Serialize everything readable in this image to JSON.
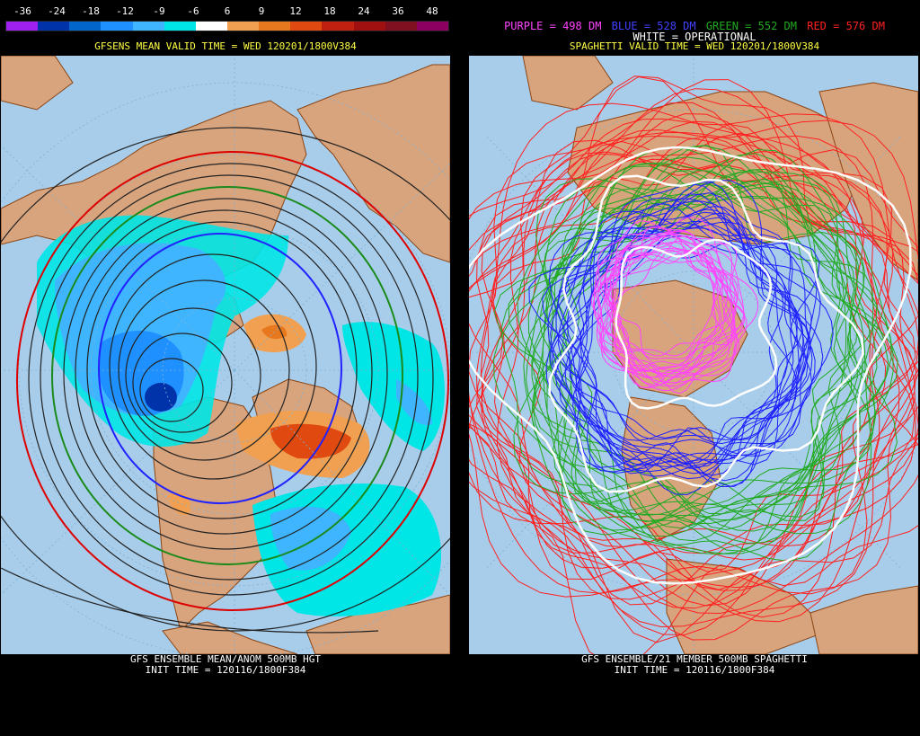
{
  "left": {
    "legend": {
      "labels": [
        "-36",
        "-24",
        "-18",
        "-12",
        "-9",
        "-6",
        "6",
        "9",
        "12",
        "18",
        "24",
        "36",
        "48"
      ],
      "colors": [
        "#a020f0",
        "#0033aa",
        "#0066cc",
        "#1e90ff",
        "#3fb5ff",
        "#00e5e5",
        "#ffffff",
        "#f0a050",
        "#e8781e",
        "#e04a10",
        "#c02010",
        "#a01010",
        "#801020",
        "#8b0060"
      ]
    },
    "title": "GFSENS MEAN VALID TIME = WED 120201/1800V384",
    "caption_line1": "GFS ENSEMBLE MEAN/ANOM 500MB HGT",
    "caption_line2": "INIT TIME = 120116/1800F384"
  },
  "right": {
    "header_items": [
      {
        "text": "PURPLE = 498 DM",
        "color": "#ff44ff"
      },
      {
        "text": "BLUE = 528 DM",
        "color": "#4040ff"
      },
      {
        "text": "GREEN = 552 DM",
        "color": "#22aa22"
      },
      {
        "text": "RED = 576 DM",
        "color": "#ff2020"
      }
    ],
    "subheader": "WHITE = OPERATIONAL",
    "title": "SPAGHETTI VALID TIME = WED 120201/1800V384",
    "caption_line1": "GFS ENSEMBLE/21 MEMBER 500MB SPAGHETTI",
    "caption_line2": "INIT TIME = 120116/1800F384"
  },
  "colors": {
    "ocean": "#a8cdea",
    "land": "#d8a47e",
    "border": "#8b4513"
  }
}
